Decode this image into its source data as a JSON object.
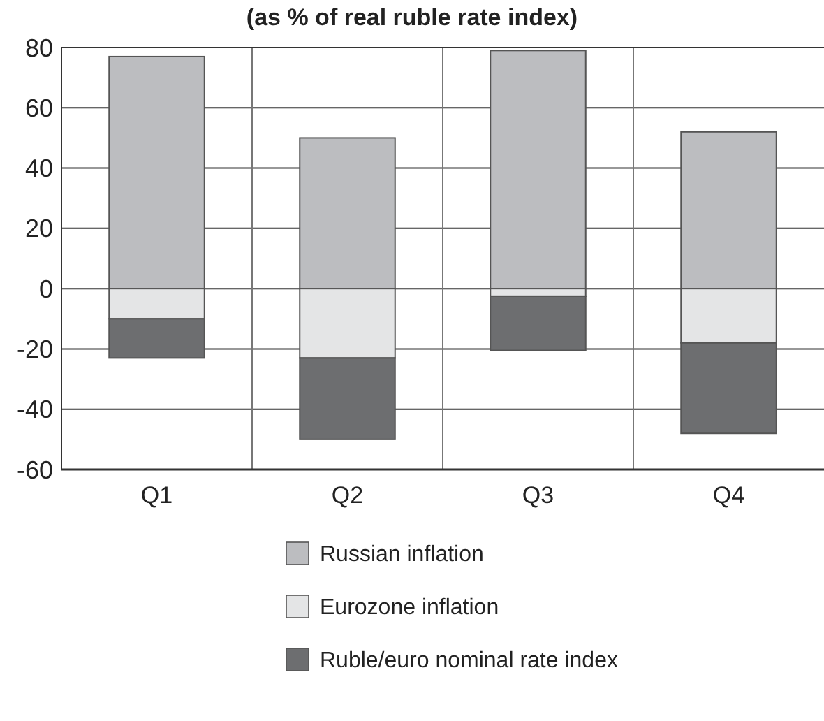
{
  "chart_data": {
    "type": "bar",
    "title": "(as % of real ruble rate index)",
    "categories": [
      "Q1",
      "Q2",
      "Q3",
      "Q4"
    ],
    "stacked": true,
    "series": [
      {
        "name": "Russian inflation",
        "color": "#bcbdc0",
        "values": [
          77,
          50,
          79,
          52
        ]
      },
      {
        "name": "Eurozone inflation",
        "color": "#e4e5e6",
        "values": [
          -10,
          -23,
          -2.5,
          -18
        ]
      },
      {
        "name": "Ruble/euro nominal rate index",
        "color": "#6d6e70",
        "values": [
          -13,
          -27,
          -18,
          -30
        ]
      }
    ],
    "ylim": [
      -60,
      80
    ],
    "yticks": [
      -60,
      -40,
      -20,
      0,
      20,
      40,
      60,
      80
    ],
    "grid": true,
    "legend": "bottom"
  }
}
